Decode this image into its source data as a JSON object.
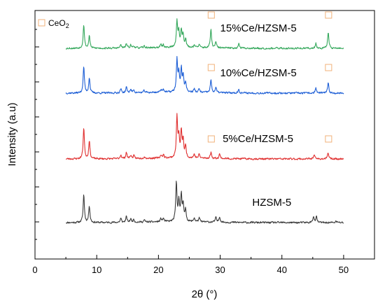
{
  "chart_data": {
    "type": "line",
    "xlabel": "2θ (°)",
    "ylabel": "Intensity (a.u)",
    "xlim": [
      0,
      55
    ],
    "xticks": [
      "0",
      "10",
      "20",
      "30",
      "40",
      "50"
    ],
    "legend": {
      "marker_label": "CeO",
      "marker_subscript": "2",
      "placement": "top-left"
    },
    "ceo2_peak_positions": [
      28.5,
      47.5
    ],
    "series": [
      {
        "name": "HZSM-5",
        "color": "#3c3c3c",
        "offset": 0,
        "noise_seed": 11,
        "label_x": 35.2,
        "peaks": [
          [
            7.9,
            1.0
          ],
          [
            8.8,
            0.6
          ],
          [
            13.9,
            0.14
          ],
          [
            14.8,
            0.2
          ],
          [
            15.5,
            0.12
          ],
          [
            16.0,
            0.1
          ],
          [
            17.7,
            0.07
          ],
          [
            20.4,
            0.11
          ],
          [
            20.8,
            0.12
          ],
          [
            22.9,
            1.38
          ],
          [
            23.3,
            0.7
          ],
          [
            23.7,
            0.92
          ],
          [
            24.0,
            0.6
          ],
          [
            24.4,
            0.4
          ],
          [
            25.8,
            0.14
          ],
          [
            26.6,
            0.14
          ],
          [
            29.3,
            0.16
          ],
          [
            29.9,
            0.2
          ],
          [
            45.1,
            0.22
          ],
          [
            45.6,
            0.2
          ],
          [
            48.8,
            0.05
          ]
        ]
      },
      {
        "name": "5%Ce/HZSM-5",
        "color": "#e03030",
        "offset": 1,
        "noise_seed": 23,
        "label_x": 30.4,
        "peaks": [
          [
            7.9,
            1.12
          ],
          [
            8.8,
            0.65
          ],
          [
            13.9,
            0.14
          ],
          [
            14.8,
            0.22
          ],
          [
            15.5,
            0.12
          ],
          [
            16.0,
            0.1
          ],
          [
            17.7,
            0.07
          ],
          [
            20.4,
            0.11
          ],
          [
            20.8,
            0.12
          ],
          [
            23.0,
            1.45
          ],
          [
            23.3,
            0.7
          ],
          [
            23.7,
            0.92
          ],
          [
            24.0,
            0.6
          ],
          [
            24.4,
            0.4
          ],
          [
            25.8,
            0.14
          ],
          [
            26.6,
            0.14
          ],
          [
            28.5,
            0.22
          ],
          [
            29.9,
            0.16
          ],
          [
            45.2,
            0.16
          ],
          [
            47.5,
            0.22
          ]
        ]
      },
      {
        "name": "10%Ce/HZSM-5",
        "color": "#1e5fd6",
        "offset": 2,
        "noise_seed": 37,
        "label_x": 30.0,
        "peaks": [
          [
            7.9,
            0.95
          ],
          [
            8.8,
            0.55
          ],
          [
            13.9,
            0.14
          ],
          [
            14.8,
            0.2
          ],
          [
            15.5,
            0.12
          ],
          [
            16.0,
            0.1
          ],
          [
            17.7,
            0.07
          ],
          [
            20.4,
            0.11
          ],
          [
            20.8,
            0.12
          ],
          [
            23.0,
            1.15
          ],
          [
            23.3,
            0.6
          ],
          [
            23.7,
            0.8
          ],
          [
            24.0,
            0.55
          ],
          [
            24.4,
            0.35
          ],
          [
            25.8,
            0.12
          ],
          [
            26.6,
            0.12
          ],
          [
            28.5,
            0.45
          ],
          [
            29.3,
            0.18
          ],
          [
            33.0,
            0.12
          ],
          [
            45.5,
            0.18
          ],
          [
            47.5,
            0.35
          ]
        ]
      },
      {
        "name": "15%Ce/HZSM-5",
        "color": "#35a85c",
        "offset": 3,
        "noise_seed": 53,
        "label_x": 30.0,
        "peaks": [
          [
            7.9,
            0.85
          ],
          [
            8.8,
            0.45
          ],
          [
            13.9,
            0.12
          ],
          [
            14.8,
            0.16
          ],
          [
            15.5,
            0.1
          ],
          [
            16.0,
            0.08
          ],
          [
            17.7,
            0.06
          ],
          [
            20.4,
            0.1
          ],
          [
            20.8,
            0.1
          ],
          [
            23.0,
            0.95
          ],
          [
            23.3,
            0.5
          ],
          [
            23.7,
            0.6
          ],
          [
            24.0,
            0.42
          ],
          [
            24.4,
            0.3
          ],
          [
            25.8,
            0.1
          ],
          [
            26.6,
            0.1
          ],
          [
            28.5,
            0.65
          ],
          [
            29.3,
            0.2
          ],
          [
            33.0,
            0.16
          ],
          [
            45.5,
            0.18
          ],
          [
            47.5,
            0.58
          ]
        ]
      }
    ]
  }
}
